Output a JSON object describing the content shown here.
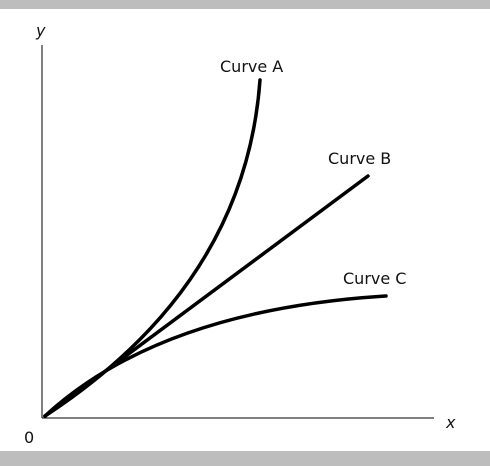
{
  "axes": {
    "y_label": "y",
    "x_label": "x",
    "origin": "0"
  },
  "curves": [
    {
      "label": "Curve A"
    },
    {
      "label": "Curve B"
    },
    {
      "label": "Curve C"
    }
  ]
}
